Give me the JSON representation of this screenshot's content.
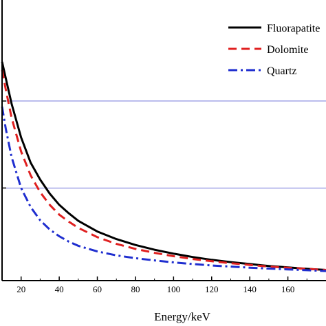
{
  "chart_data": {
    "type": "line",
    "xlabel": "Energy/keV",
    "ylabel": "",
    "title": "",
    "xlim": [
      10,
      180
    ],
    "x_ticks": [
      20,
      40,
      60,
      80,
      100,
      120,
      140,
      160
    ],
    "x_tick_labels": [
      "20",
      "40",
      "60",
      "80",
      "100",
      "120",
      "140",
      "160"
    ],
    "ylim": [
      0,
      1
    ],
    "grid": "horizontal lines at two reference levels",
    "reference_lines": [
      0.64,
      0.33
    ],
    "legend_position": "top-right",
    "x": [
      10,
      12,
      15,
      20,
      25,
      30,
      35,
      40,
      45,
      50,
      60,
      70,
      80,
      90,
      100,
      110,
      120,
      130,
      140,
      150,
      160,
      170,
      180
    ],
    "series": [
      {
        "name": "Fluorapatite",
        "color": "#000000",
        "dash": "solid",
        "values": [
          0.78,
          0.72,
          0.63,
          0.51,
          0.42,
          0.36,
          0.31,
          0.27,
          0.24,
          0.213,
          0.175,
          0.148,
          0.127,
          0.11,
          0.096,
          0.084,
          0.074,
          0.066,
          0.059,
          0.052,
          0.047,
          0.042,
          0.038
        ]
      },
      {
        "name": "Dolomite",
        "color": "#e02020",
        "dash": "dashed",
        "values": [
          0.75,
          0.68,
          0.58,
          0.46,
          0.375,
          0.315,
          0.27,
          0.235,
          0.21,
          0.188,
          0.155,
          0.131,
          0.113,
          0.099,
          0.087,
          0.077,
          0.069,
          0.062,
          0.056,
          0.05,
          0.046,
          0.042,
          0.038
        ]
      },
      {
        "name": "Quartz",
        "color": "#1f2ecf",
        "dash": "dash-dot",
        "values": [
          0.62,
          0.54,
          0.44,
          0.33,
          0.262,
          0.215,
          0.182,
          0.158,
          0.139,
          0.124,
          0.104,
          0.09,
          0.08,
          0.072,
          0.065,
          0.059,
          0.054,
          0.05,
          0.046,
          0.043,
          0.04,
          0.037,
          0.034
        ]
      }
    ]
  }
}
